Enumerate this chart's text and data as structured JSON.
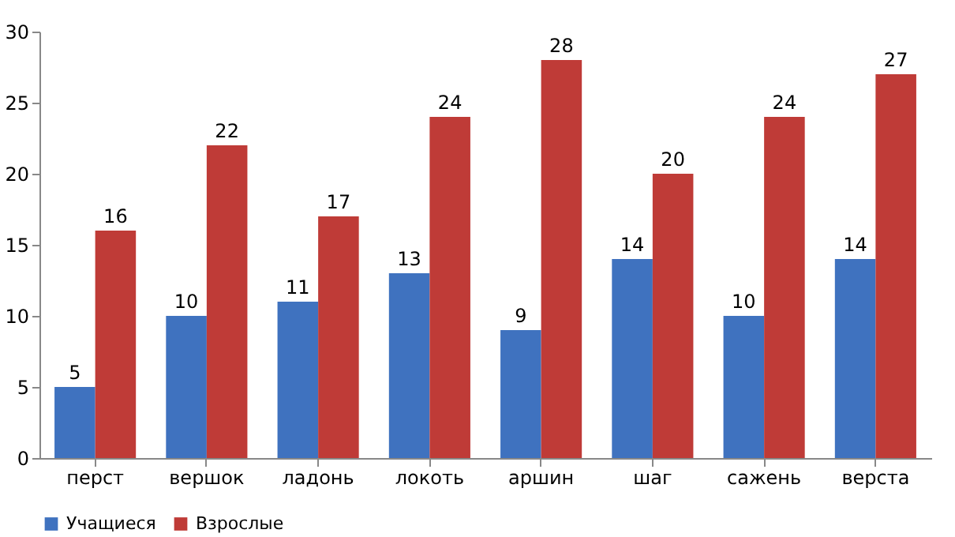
{
  "chart_data": {
    "type": "bar",
    "categories": [
      "перст",
      "вершок",
      "ладонь",
      "локоть",
      "аршин",
      "шаг",
      "сажень",
      "верста"
    ],
    "series": [
      {
        "name": "Учащиеся",
        "color": "#3f72bf",
        "values": [
          5,
          10,
          11,
          13,
          9,
          14,
          10,
          14
        ]
      },
      {
        "name": "Взрослые",
        "color": "#bf3b37",
        "values": [
          16,
          22,
          17,
          24,
          28,
          20,
          24,
          27
        ]
      }
    ],
    "ylim": [
      0,
      30
    ],
    "yticks": [
      0,
      5,
      10,
      15,
      20,
      25,
      30
    ],
    "grid": false,
    "legend": "bottom",
    "data_labels": true
  }
}
